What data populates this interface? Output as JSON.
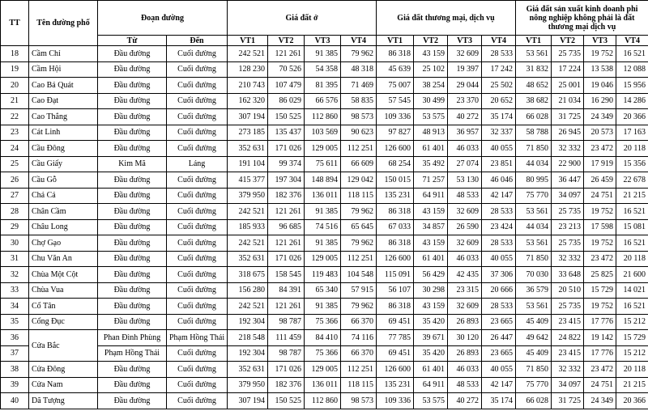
{
  "header": {
    "tt": "TT",
    "street": "Tên đường phố",
    "segment": "Đoạn đường",
    "from": "Từ",
    "to": "Đến",
    "groups": [
      {
        "title": "Giá đất ở",
        "positions": [
          "VT1",
          "VT2",
          "VT3",
          "VT4"
        ]
      },
      {
        "title": "Giá đất thương mại, dịch vụ",
        "positions": [
          "VT1",
          "VT2",
          "VT3",
          "VT4"
        ]
      },
      {
        "title": "Giá đất sản xuất kinh doanh phi nông nghiệp không phải là đất thương mại dịch vụ",
        "positions": [
          "VT1",
          "VT2",
          "VT3",
          "VT4"
        ]
      }
    ]
  },
  "streets": [
    {
      "name": "Cầm Chỉ",
      "segments": [
        {
          "tt": 18,
          "from": "Đầu đường",
          "to": "Cuối đường",
          "prices": [
            "242 521",
            "121 261",
            "91 385",
            "79 962",
            "86 318",
            "43 159",
            "32 609",
            "28 533",
            "53 561",
            "25 735",
            "19 752",
            "16 521"
          ]
        }
      ]
    },
    {
      "name": "Cầm Hội",
      "segments": [
        {
          "tt": 19,
          "from": "Đầu đường",
          "to": "Cuối đường",
          "prices": [
            "128 230",
            "70 526",
            "54 358",
            "48 318",
            "45 639",
            "25 102",
            "19 397",
            "17 242",
            "31 832",
            "17 224",
            "13 538",
            "12 088"
          ]
        }
      ]
    },
    {
      "name": "Cao Bá Quát",
      "segments": [
        {
          "tt": 20,
          "from": "Đầu đường",
          "to": "Cuối đường",
          "prices": [
            "210 743",
            "107 479",
            "81 395",
            "71 469",
            "75 007",
            "38 254",
            "29 044",
            "25 502",
            "48 652",
            "25 001",
            "19 046",
            "15 956"
          ]
        }
      ]
    },
    {
      "name": "Cao Đạt",
      "segments": [
        {
          "tt": 21,
          "from": "Đầu đường",
          "to": "Cuối đường",
          "prices": [
            "162 320",
            "86 029",
            "66 576",
            "58 835",
            "57 545",
            "30 499",
            "23 370",
            "20 652",
            "38 682",
            "21 034",
            "16 290",
            "14 286"
          ]
        }
      ]
    },
    {
      "name": "Cao Thắng",
      "segments": [
        {
          "tt": 22,
          "from": "Đầu đường",
          "to": "Cuối đường",
          "prices": [
            "307 194",
            "150 525",
            "112 860",
            "98 573",
            "109 336",
            "53 575",
            "40 272",
            "35 174",
            "66 028",
            "31 725",
            "24 349",
            "20 366"
          ]
        }
      ]
    },
    {
      "name": "Cát Linh",
      "segments": [
        {
          "tt": 23,
          "from": "Đầu đường",
          "to": "Cuối đường",
          "prices": [
            "273 185",
            "135 437",
            "103 569",
            "90 623",
            "97 827",
            "48 913",
            "36 957",
            "32 337",
            "58 788",
            "26 945",
            "20 573",
            "17 163"
          ]
        }
      ]
    },
    {
      "name": "Cầu Đông",
      "segments": [
        {
          "tt": 24,
          "from": "Đầu đường",
          "to": "Cuối đường",
          "prices": [
            "352 631",
            "171 026",
            "129 005",
            "112 251",
            "126 600",
            "61 401",
            "46 033",
            "40 055",
            "71 850",
            "32 332",
            "23 472",
            "20 118"
          ]
        }
      ]
    },
    {
      "name": "Cầu Giấy",
      "segments": [
        {
          "tt": 25,
          "from": "Kim Mã",
          "to": "Láng",
          "prices": [
            "191 104",
            "99 374",
            "75 611",
            "66 609",
            "68 254",
            "35 492",
            "27 074",
            "23 851",
            "44 034",
            "22 900",
            "17 919",
            "15 356"
          ]
        }
      ]
    },
    {
      "name": "Cầu Gỗ",
      "segments": [
        {
          "tt": 26,
          "from": "Đầu đường",
          "to": "Cuối đường",
          "prices": [
            "415 377",
            "197 304",
            "148 894",
            "129 042",
            "150 015",
            "71 257",
            "53 130",
            "46 046",
            "80 995",
            "36 447",
            "26 459",
            "22 678"
          ]
        }
      ]
    },
    {
      "name": "Chả Cá",
      "segments": [
        {
          "tt": 27,
          "from": "Đầu đường",
          "to": "Cuối đường",
          "prices": [
            "379 950",
            "182 376",
            "136 011",
            "118 115",
            "135 231",
            "64 911",
            "48 533",
            "42 147",
            "75 770",
            "34 097",
            "24 751",
            "21 215"
          ]
        }
      ]
    },
    {
      "name": "Chân Cầm",
      "segments": [
        {
          "tt": 28,
          "from": "Đầu đường",
          "to": "Cuối đường",
          "prices": [
            "242 521",
            "121 261",
            "91 385",
            "79 962",
            "86 318",
            "43 159",
            "32 609",
            "28 533",
            "53 561",
            "25 735",
            "19 752",
            "16 521"
          ]
        }
      ]
    },
    {
      "name": "Châu Long",
      "segments": [
        {
          "tt": 29,
          "from": "Đầu đường",
          "to": "Cuối đường",
          "prices": [
            "185 933",
            "96 685",
            "74 516",
            "65 645",
            "67 033",
            "34 857",
            "26 590",
            "23 424",
            "44 034",
            "23 213",
            "17 598",
            "15 081"
          ]
        }
      ]
    },
    {
      "name": "Chợ Gạo",
      "segments": [
        {
          "tt": 30,
          "from": "Đầu đường",
          "to": "Cuối đường",
          "prices": [
            "242 521",
            "121 261",
            "91 385",
            "79 962",
            "86 318",
            "43 159",
            "32 609",
            "28 533",
            "53 561",
            "25 735",
            "19 752",
            "16 521"
          ]
        }
      ]
    },
    {
      "name": "Chu Văn An",
      "segments": [
        {
          "tt": 31,
          "from": "Đầu đường",
          "to": "Cuối đường",
          "prices": [
            "352 631",
            "171 026",
            "129 005",
            "112 251",
            "126 600",
            "61 401",
            "46 033",
            "40 055",
            "71 850",
            "32 332",
            "23 472",
            "20 118"
          ]
        }
      ]
    },
    {
      "name": "Chùa Một Cột",
      "segments": [
        {
          "tt": 32,
          "from": "Đầu đường",
          "to": "Cuối đường",
          "prices": [
            "318 675",
            "158 545",
            "119 483",
            "104 548",
            "115 091",
            "56 429",
            "42 435",
            "37 306",
            "70 030",
            "33 648",
            "25 825",
            "21 600"
          ]
        }
      ]
    },
    {
      "name": "Chùa Vua",
      "segments": [
        {
          "tt": 33,
          "from": "Đầu đường",
          "to": "Cuối đường",
          "prices": [
            "156 280",
            "84 391",
            "65 340",
            "57 915",
            "56 107",
            "30 298",
            "23 315",
            "20 666",
            "36 579",
            "20 510",
            "15 729",
            "14 021"
          ]
        }
      ]
    },
    {
      "name": "Cổ Tân",
      "segments": [
        {
          "tt": 34,
          "from": "Đầu đường",
          "to": "Cuối đường",
          "prices": [
            "242 521",
            "121 261",
            "91 385",
            "79 962",
            "86 318",
            "43 159",
            "32 609",
            "28 533",
            "53 561",
            "25 735",
            "19 752",
            "16 521"
          ]
        }
      ]
    },
    {
      "name": "Cổng Đục",
      "segments": [
        {
          "tt": 35,
          "from": "Đầu đường",
          "to": "Cuối đường",
          "prices": [
            "192 304",
            "98 787",
            "75 366",
            "66 370",
            "69 451",
            "35 420",
            "26 893",
            "23 665",
            "45 409",
            "23 415",
            "17 776",
            "15 212"
          ]
        }
      ]
    },
    {
      "name": "Cửa Bắc",
      "segments": [
        {
          "tt": 36,
          "from": "Phan Đình Phùng",
          "to": "Phạm Hồng Thái",
          "prices": [
            "218 548",
            "111 459",
            "84 410",
            "74 116",
            "77 785",
            "39 671",
            "30 120",
            "26 447",
            "49 642",
            "24 822",
            "19 142",
            "15 729"
          ]
        },
        {
          "tt": 37,
          "from": "Phạm Hồng Thái",
          "to": "Cuối đường",
          "prices": [
            "192 304",
            "98 787",
            "75 366",
            "66 370",
            "69 451",
            "35 420",
            "26 893",
            "23 665",
            "45 409",
            "23 415",
            "17 776",
            "15 212"
          ]
        }
      ]
    },
    {
      "name": "Cửa Đông",
      "segments": [
        {
          "tt": 38,
          "from": "Đầu đường",
          "to": "Cuối đường",
          "prices": [
            "352 631",
            "171 026",
            "129 005",
            "112 251",
            "126 600",
            "61 401",
            "46 033",
            "40 055",
            "71 850",
            "32 332",
            "23 472",
            "20 118"
          ]
        }
      ]
    },
    {
      "name": "Cửa Nam",
      "segments": [
        {
          "tt": 39,
          "from": "Đầu đường",
          "to": "Cuối đường",
          "prices": [
            "379 950",
            "182 376",
            "136 011",
            "118 115",
            "135 231",
            "64 911",
            "48 533",
            "42 147",
            "75 770",
            "34 097",
            "24 751",
            "21 215"
          ]
        }
      ]
    },
    {
      "name": "Dã Tượng",
      "segments": [
        {
          "tt": 40,
          "from": "Đầu đường",
          "to": "Cuối đường",
          "prices": [
            "307 194",
            "150 525",
            "112 860",
            "98 573",
            "109 336",
            "53 575",
            "40 272",
            "35 174",
            "66 028",
            "31 725",
            "24 349",
            "20 366"
          ]
        }
      ]
    }
  ]
}
